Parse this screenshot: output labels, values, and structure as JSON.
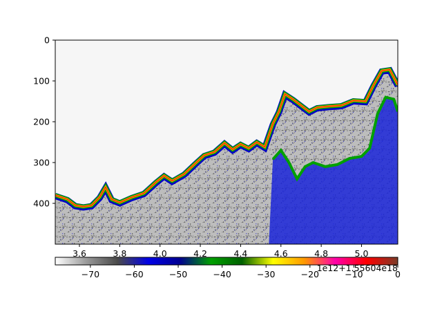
{
  "chart_data": {
    "type": "heatmap",
    "title": "",
    "xlabel": "",
    "ylabel": "",
    "x_ticks": [
      "3.6",
      "3.8",
      "4.0",
      "4.2",
      "4.4",
      "4.6",
      "4.8",
      "5.0"
    ],
    "x_tick_values": [
      3.6,
      3.8,
      4.0,
      4.2,
      4.4,
      4.6,
      4.8,
      5.0
    ],
    "x_offset_text": "1e12+1.55604e18",
    "xlim": [
      3.48,
      5.18
    ],
    "y_ticks": [
      "0",
      "100",
      "200",
      "300",
      "400"
    ],
    "y_tick_values": [
      0,
      100,
      200,
      300,
      400
    ],
    "ylim": [
      500,
      0
    ],
    "y_inverted": true,
    "colorbar": {
      "orientation": "horizontal",
      "ticks": [
        "−70",
        "−60",
        "−50",
        "−40",
        "−30",
        "−20",
        "−10",
        "0"
      ],
      "tick_values": [
        -70,
        -60,
        -50,
        -40,
        -30,
        -20,
        -10,
        0
      ],
      "range": [
        -78,
        0
      ],
      "colors": [
        "#ffffff",
        "#9a9a9a",
        "#4a4a4a",
        "#0000e6",
        "#000090",
        "#00a000",
        "#006000",
        "#ffff00",
        "#ff9900",
        "#ff00aa",
        "#ff0000",
        "#7a3c28"
      ]
    },
    "seabed_line": [
      {
        "x": 3.48,
        "y": 380
      },
      {
        "x": 3.54,
        "y": 390
      },
      {
        "x": 3.58,
        "y": 405
      },
      {
        "x": 3.62,
        "y": 408
      },
      {
        "x": 3.66,
        "y": 405
      },
      {
        "x": 3.7,
        "y": 385
      },
      {
        "x": 3.73,
        "y": 360
      },
      {
        "x": 3.76,
        "y": 390
      },
      {
        "x": 3.8,
        "y": 398
      },
      {
        "x": 3.86,
        "y": 385
      },
      {
        "x": 3.92,
        "y": 375
      },
      {
        "x": 3.98,
        "y": 348
      },
      {
        "x": 4.02,
        "y": 332
      },
      {
        "x": 4.06,
        "y": 345
      },
      {
        "x": 4.12,
        "y": 328
      },
      {
        "x": 4.18,
        "y": 300
      },
      {
        "x": 4.22,
        "y": 282
      },
      {
        "x": 4.27,
        "y": 274
      },
      {
        "x": 4.32,
        "y": 252
      },
      {
        "x": 4.36,
        "y": 268
      },
      {
        "x": 4.4,
        "y": 255
      },
      {
        "x": 4.44,
        "y": 265
      },
      {
        "x": 4.48,
        "y": 250
      },
      {
        "x": 4.52,
        "y": 262
      },
      {
        "x": 4.56,
        "y": 205
      },
      {
        "x": 4.59,
        "y": 175
      },
      {
        "x": 4.62,
        "y": 132
      },
      {
        "x": 4.66,
        "y": 145
      },
      {
        "x": 4.7,
        "y": 160
      },
      {
        "x": 4.74,
        "y": 175
      },
      {
        "x": 4.78,
        "y": 165
      },
      {
        "x": 4.84,
        "y": 162
      },
      {
        "x": 4.9,
        "y": 160
      },
      {
        "x": 4.96,
        "y": 148
      },
      {
        "x": 5.02,
        "y": 150
      },
      {
        "x": 5.06,
        "y": 110
      },
      {
        "x": 5.1,
        "y": 75
      },
      {
        "x": 5.14,
        "y": 72
      },
      {
        "x": 5.18,
        "y": 110
      }
    ],
    "second_echo_line": [
      {
        "x": 4.56,
        "y": 292
      },
      {
        "x": 4.6,
        "y": 270
      },
      {
        "x": 4.64,
        "y": 300
      },
      {
        "x": 4.68,
        "y": 340
      },
      {
        "x": 4.72,
        "y": 310
      },
      {
        "x": 4.76,
        "y": 300
      },
      {
        "x": 4.82,
        "y": 310
      },
      {
        "x": 4.88,
        "y": 305
      },
      {
        "x": 4.94,
        "y": 290
      },
      {
        "x": 5.0,
        "y": 285
      },
      {
        "x": 5.04,
        "y": 265
      },
      {
        "x": 5.08,
        "y": 180
      },
      {
        "x": 5.12,
        "y": 140
      },
      {
        "x": 5.16,
        "y": 145
      },
      {
        "x": 5.18,
        "y": 175
      }
    ]
  }
}
